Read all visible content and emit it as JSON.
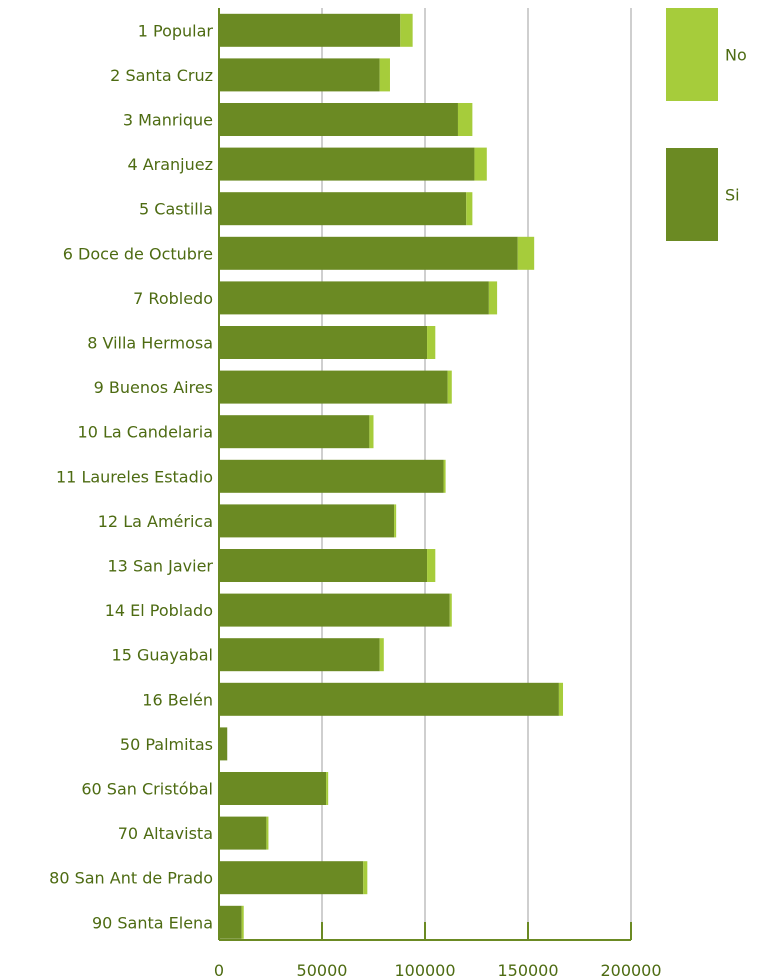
{
  "chart_data": {
    "type": "bar",
    "orientation": "horizontal",
    "stacked": true,
    "categories": [
      "1 Popular",
      "2 Santa Cruz",
      "3 Manrique",
      "4 Aranjuez",
      "5 Castilla",
      "6 Doce de Octubre",
      "7 Robledo",
      "8 Villa Hermosa",
      "9 Buenos Aires",
      "10 La Candelaria",
      "11 Laureles Estadio",
      "12 La América",
      "13 San Javier",
      "14 El Poblado",
      "15 Guayabal",
      "16 Belén",
      "50 Palmitas",
      "60 San Cristóbal",
      "70 Altavista",
      "80 San Ant de Prado",
      "90 Santa Elena"
    ],
    "series": [
      {
        "name": "Si",
        "color": "#6b8a23",
        "values": [
          88000,
          78000,
          116000,
          124000,
          120000,
          145000,
          131000,
          101000,
          111000,
          73000,
          109000,
          85000,
          101000,
          112000,
          78000,
          165000,
          4000,
          52000,
          23000,
          70000,
          11000
        ]
      },
      {
        "name": "No",
        "color": "#a6cc3b",
        "values": [
          6000,
          5000,
          7000,
          6000,
          3000,
          8000,
          4000,
          4000,
          2000,
          2000,
          1000,
          1000,
          4000,
          1000,
          2000,
          2000,
          0,
          1000,
          1000,
          2000,
          1000
        ]
      }
    ],
    "xticks": [
      "0",
      "50000",
      "100000",
      "150000",
      "200000"
    ],
    "xlim": [
      0,
      200000
    ],
    "grid": true,
    "legend": {
      "position": "right",
      "items": [
        "No",
        "Si"
      ]
    },
    "title": "",
    "xlabel": "",
    "ylabel": ""
  }
}
